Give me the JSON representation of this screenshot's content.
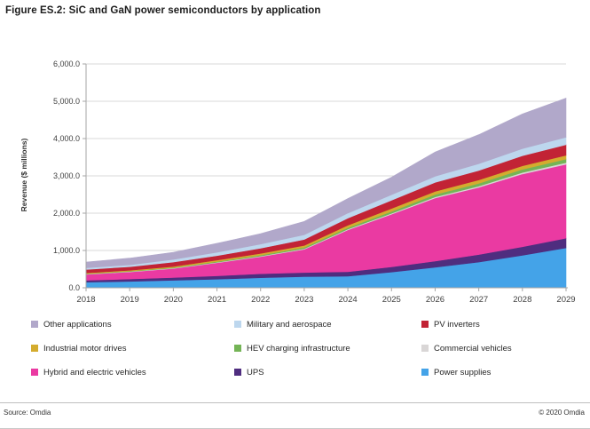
{
  "title": "Figure ES.2: SiC and GaN power semiconductors by application",
  "footer": {
    "source": "Source: Omdia",
    "copyright": "© 2020 Omdia"
  },
  "chart_data": {
    "type": "area",
    "stacked": true,
    "title": "Figure ES.2: SiC and GaN power semiconductors by application",
    "xlabel": "",
    "ylabel": "Revenue ($ millions)",
    "x": [
      2018,
      2019,
      2020,
      2021,
      2022,
      2023,
      2024,
      2025,
      2026,
      2027,
      2028,
      2029
    ],
    "ylim": [
      0,
      6000
    ],
    "ytick_step": 1000,
    "ytick_labels": [
      "0.0",
      "1,000.0",
      "2,000.0",
      "3,000.0",
      "4,000.0",
      "5,000.0",
      "6,000.0"
    ],
    "grid": true,
    "legend_position": "bottom",
    "legend_note": "legend reads in reverse of stacking order, 3 columns",
    "series_order": "bottom-to-top",
    "series": [
      {
        "name": "Power supplies",
        "color": "#44a3e8",
        "values": [
          150,
          170,
          200,
          230,
          270,
          300,
          310,
          420,
          550,
          690,
          870,
          1070
        ]
      },
      {
        "name": "UPS",
        "color": "#4f2d7f",
        "values": [
          50,
          65,
          75,
          90,
          105,
          110,
          120,
          140,
          165,
          200,
          230,
          260
        ]
      },
      {
        "name": "Hybrid and electric vehicles",
        "color": "#ea3aa2",
        "values": [
          160,
          190,
          240,
          350,
          460,
          620,
          1120,
          1410,
          1690,
          1800,
          1950,
          1980
        ]
      },
      {
        "name": "Commercial vehicles",
        "color": "#d9d6d6",
        "values": [
          8,
          10,
          12,
          13,
          15,
          18,
          22,
          25,
          30,
          35,
          40,
          45
        ]
      },
      {
        "name": "HEV charging infrastructure",
        "color": "#74b456",
        "values": [
          10,
          12,
          15,
          20,
          25,
          32,
          40,
          50,
          65,
          75,
          85,
          95
        ]
      },
      {
        "name": "Industrial motor drives",
        "color": "#d4ac2e",
        "values": [
          18,
          22,
          28,
          38,
          45,
          55,
          65,
          80,
          85,
          90,
          95,
          100
        ]
      },
      {
        "name": "PV inverters",
        "color": "#c22335",
        "values": [
          94,
          96,
          120,
          120,
          140,
          160,
          190,
          220,
          240,
          255,
          270,
          285
        ]
      },
      {
        "name": "Military and aerospace",
        "color": "#bdd7ee",
        "values": [
          45,
          50,
          70,
          90,
          110,
          125,
          135,
          150,
          165,
          180,
          190,
          200
        ]
      },
      {
        "name": "Other applications",
        "color": "#b1a8ca",
        "values": [
          155,
          180,
          190,
          240,
          280,
          360,
          390,
          470,
          650,
          780,
          930,
          1050
        ]
      }
    ],
    "axis_colors": {
      "gridline": "#d9d9d9",
      "axis_line": "#a6a6a6",
      "tick_label": "#404040"
    }
  }
}
